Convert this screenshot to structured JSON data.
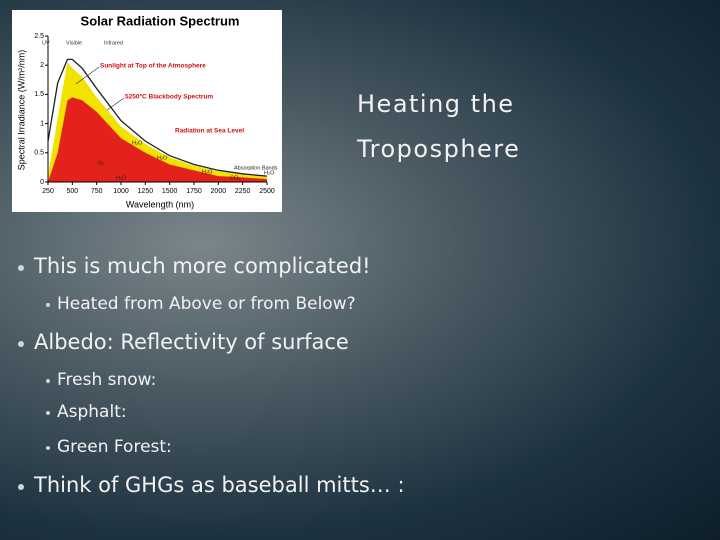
{
  "title": {
    "lines": [
      "Heating the",
      "Troposphere"
    ]
  },
  "bullets": [
    {
      "text": "This is much more complicated!",
      "level": 1
    },
    {
      "text": "Heated from Above or from Below?",
      "level": 2
    },
    {
      "text": "Albedo: Reflectivity of surface",
      "level": 1
    },
    {
      "text": "Fresh snow:",
      "level": 2
    },
    {
      "text": "Asphalt:",
      "level": 2
    },
    {
      "text": "Green Forest:",
      "level": 2
    },
    {
      "text": "Think of GHGs as baseball mitts… :",
      "level": 1
    }
  ],
  "figure": {
    "type": "area",
    "title": "Solar Radiation Spectrum",
    "x_label": "Wavelength (nm)",
    "y_label": "Spectral Irradiance (W/m²/nm)",
    "xlim": [
      250,
      2500
    ],
    "ylim": [
      0,
      2.5
    ],
    "xticks": [
      250,
      500,
      750,
      1000,
      1250,
      1500,
      1750,
      2000,
      2250,
      2500
    ],
    "yticks": [
      0,
      0.5,
      1,
      1.5,
      2,
      2.5
    ],
    "x": [
      250,
      350,
      450,
      500,
      600,
      750,
      1000,
      1250,
      1500,
      1750,
      2000,
      2250,
      2500
    ],
    "series": [
      {
        "name": "5250°C Blackbody Spectrum",
        "color": "#222222",
        "values": [
          0.7,
          1.7,
          2.1,
          2.1,
          1.95,
          1.6,
          1.05,
          0.7,
          0.45,
          0.3,
          0.2,
          0.14,
          0.1
        ]
      },
      {
        "name": "Sunlight at Top of the Atmosphere",
        "color": "#f2e200",
        "values": [
          0.1,
          1.1,
          2.05,
          1.95,
          1.8,
          1.45,
          0.95,
          0.65,
          0.42,
          0.28,
          0.18,
          0.13,
          0.09
        ]
      },
      {
        "name": "Radiation at Sea Level",
        "color": "#e3231b",
        "values": [
          0,
          0.5,
          1.4,
          1.45,
          1.4,
          1.2,
          0.75,
          0.5,
          0.3,
          0.2,
          0.1,
          0.08,
          0.05
        ]
      }
    ],
    "annotations": [
      "UV",
      "Visible",
      "Infrared",
      "H₂O",
      "H₂O",
      "O₂",
      "H₂O",
      "Absorption Bands",
      "H₂O",
      "CO₂",
      "H₂O"
    ]
  }
}
